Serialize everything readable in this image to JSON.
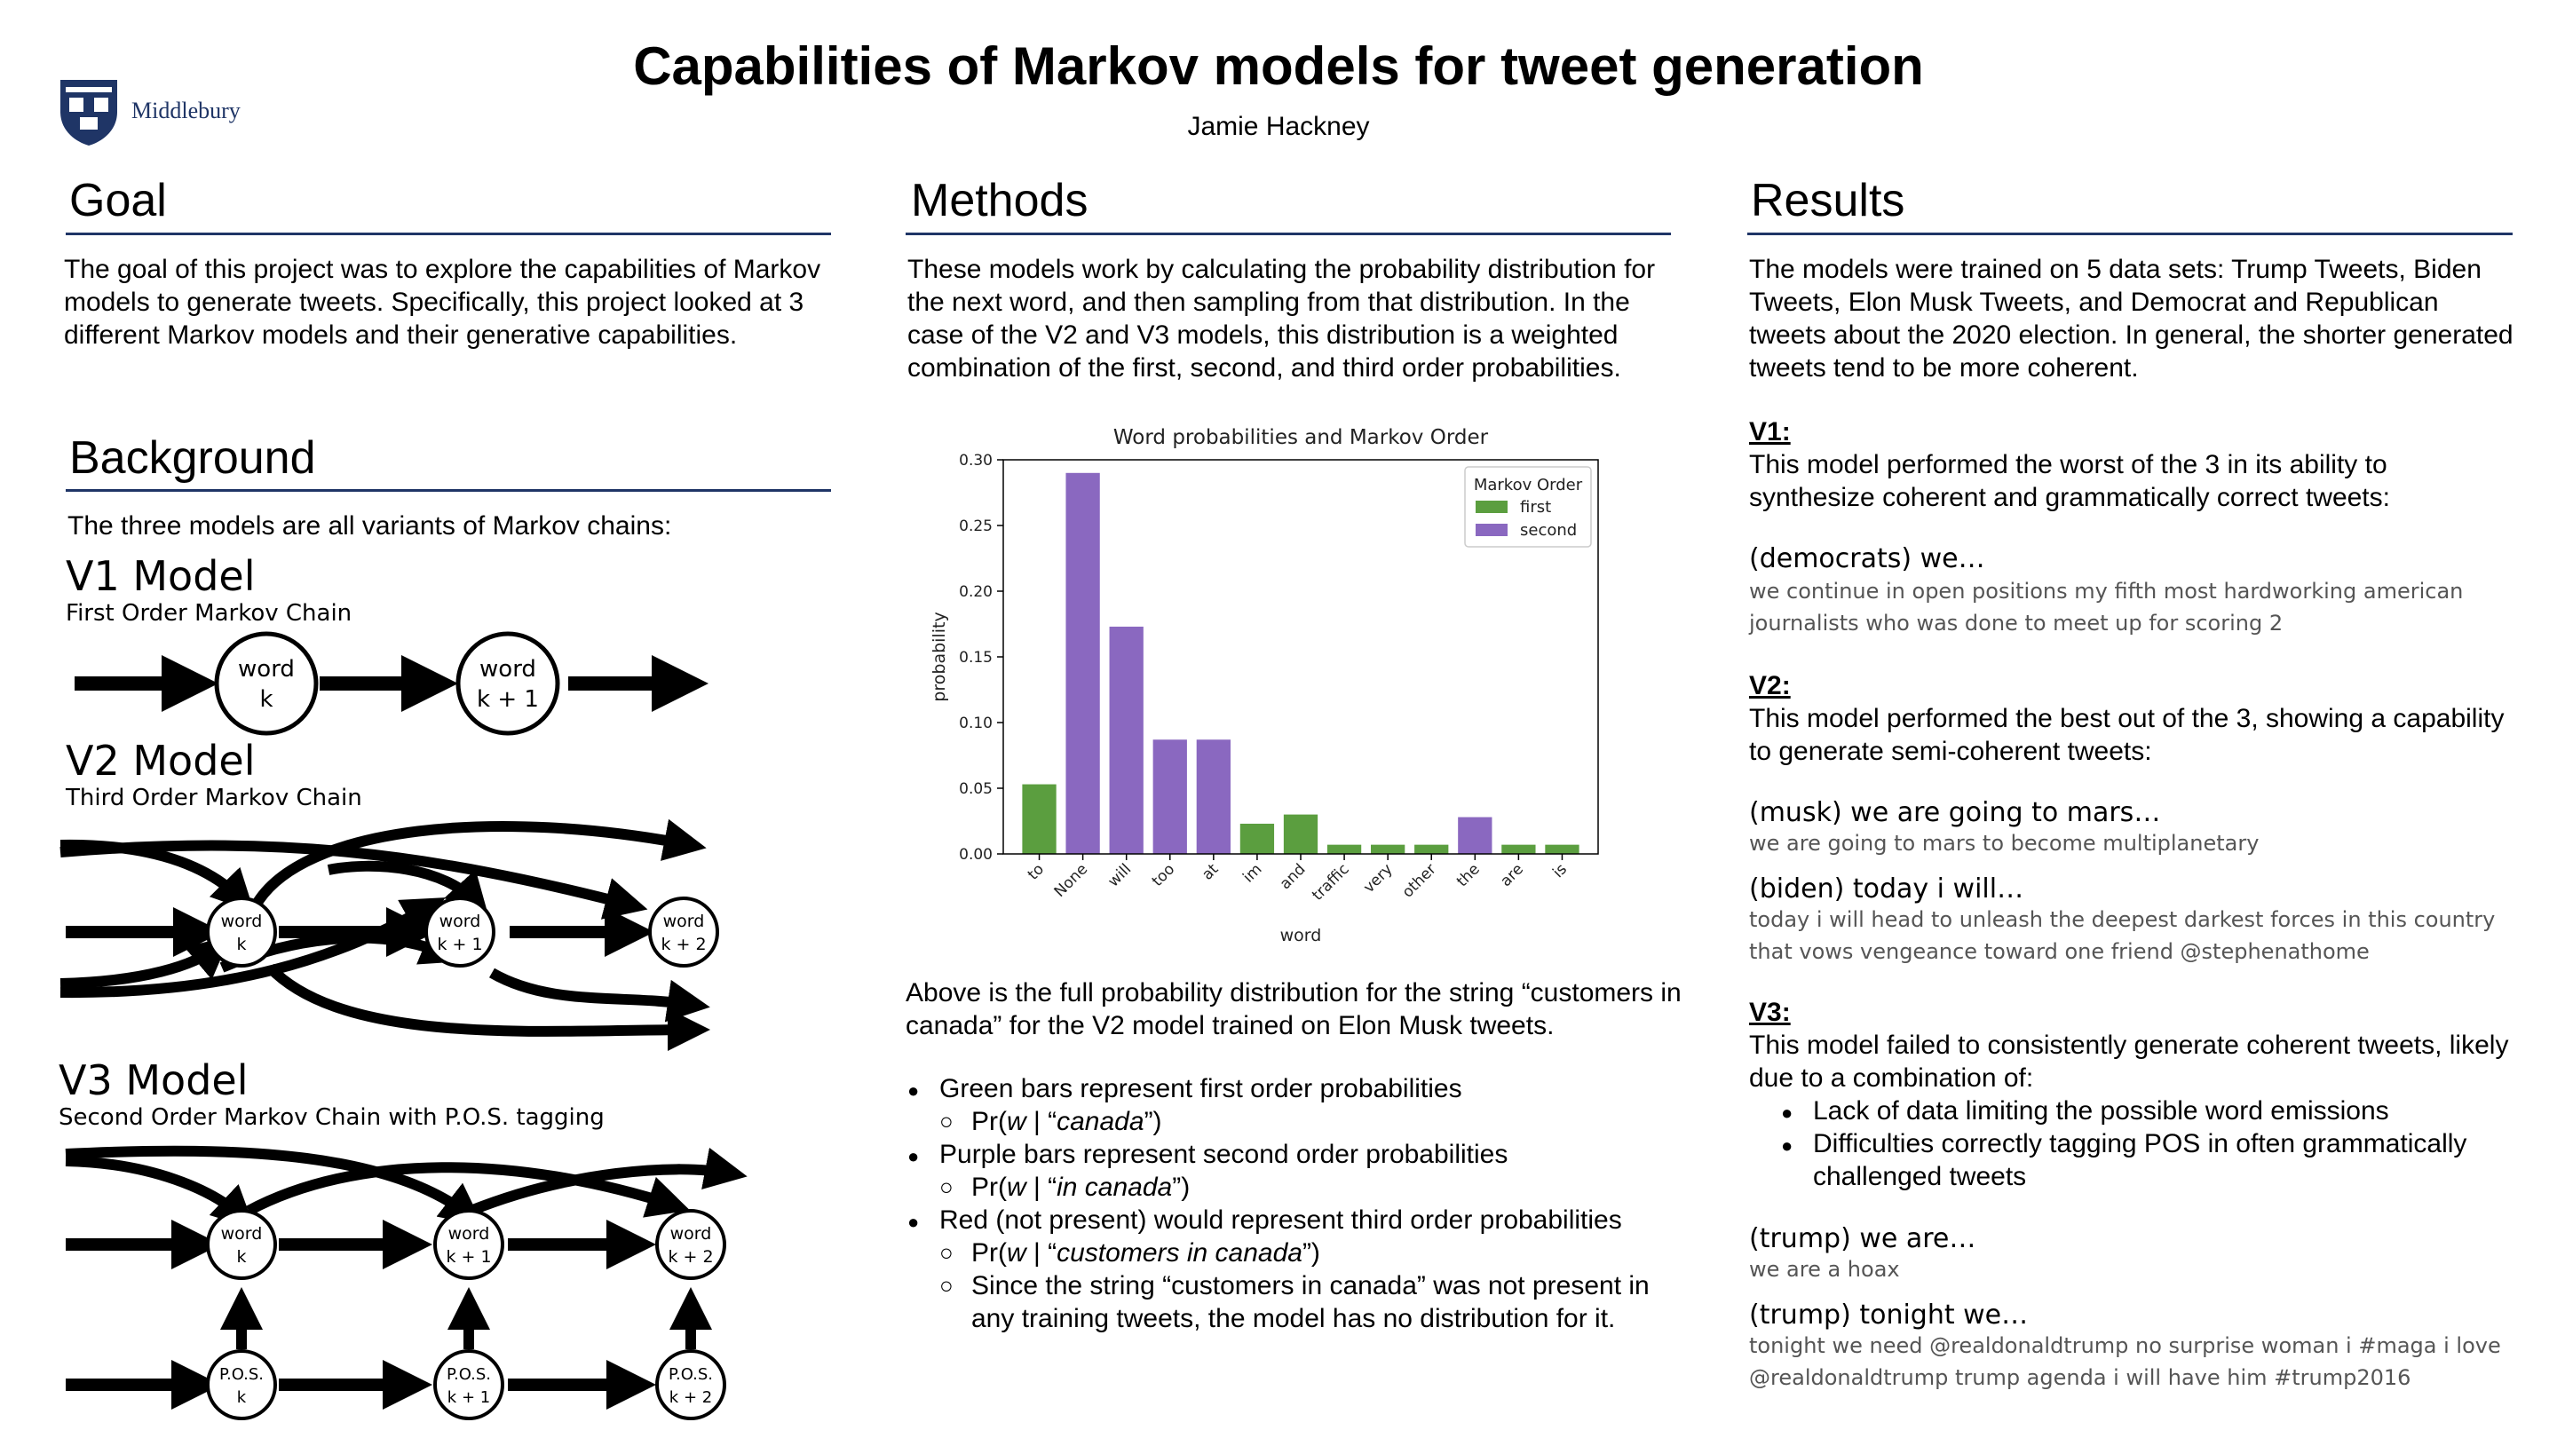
{
  "header": {
    "title": "Capabilities of Markov models for tweet generation",
    "author": "Jamie Hackney",
    "logo_text": "Middlebury"
  },
  "goal": {
    "heading": "Goal",
    "text": "The goal of this project was to explore the capabilities of Markov models to generate tweets. Specifically, this project looked at 3 different Markov models and their generative capabilities."
  },
  "background": {
    "heading": "Background",
    "intro": "The three models are all variants of Markov chains:",
    "v1": {
      "title": "V1 Model",
      "subtitle": "First Order Markov Chain",
      "node1": [
        "word",
        "k"
      ],
      "node2": [
        "word",
        "k + 1"
      ]
    },
    "v2": {
      "title": "V2 Model",
      "subtitle": "Third Order Markov Chain",
      "nodes": [
        [
          "word",
          "k"
        ],
        [
          "word",
          "k + 1"
        ],
        [
          "word",
          "k + 2"
        ]
      ]
    },
    "v3": {
      "title": "V3 Model",
      "subtitle": "Second Order Markov Chain with P.O.S. tagging",
      "word_nodes": [
        [
          "word",
          "k"
        ],
        [
          "word",
          "k + 1"
        ],
        [
          "word",
          "k + 2"
        ]
      ],
      "pos_nodes": [
        [
          "P.O.S.",
          "k"
        ],
        [
          "P.O.S.",
          "k + 1"
        ],
        [
          "P.O.S.",
          "k + 2"
        ]
      ]
    }
  },
  "methods": {
    "heading": "Methods",
    "text": "These models work by calculating the probability distribution for the next word, and then sampling from that distribution. In the case of the V2 and V3 models, this distribution is a weighted combination of the first, second, and third order probabilities.",
    "caption": "Above is the full probability distribution for the string “customers in canada” for the V2 model trained on Elon Musk tweets.",
    "bullets": {
      "b1": "Green bars represent first order probabilities",
      "b1_sub": {
        "prefix": "Pr(",
        "var": "w",
        "mid": " | “",
        "phrase": "canada",
        "suffix": "”)"
      },
      "b2": "Purple bars represent second order probabilities",
      "b2_sub": {
        "prefix": "Pr(",
        "var": "w",
        "mid": " | “",
        "phrase": "in canada",
        "suffix": "”)"
      },
      "b3": "Red (not present) would represent third order probabilities",
      "b3_sub": {
        "prefix": "Pr(",
        "var": "w",
        "mid": " | “",
        "phrase": "customers in canada",
        "suffix": "”)"
      },
      "b3_sub2": "Since the string “customers in canada” was not present in any training tweets, the model has no distribution for it."
    }
  },
  "chart_data": {
    "type": "bar",
    "title": "Word probabilities and Markov Order",
    "xlabel": "word",
    "ylabel": "probability",
    "ylim": [
      0,
      0.3
    ],
    "yticks": [
      "0.00",
      "0.05",
      "0.10",
      "0.15",
      "0.20",
      "0.25",
      "0.30"
    ],
    "grid": false,
    "legend": {
      "title": "Markov Order",
      "placement": "top-right",
      "entries": [
        "first",
        "second"
      ]
    },
    "colors": {
      "first": "#5b9e3f",
      "second": "#8a68c0"
    },
    "categories": [
      "to",
      "None",
      "will",
      "too",
      "at",
      "im",
      "and",
      "traffic",
      "very",
      "other",
      "the",
      "are",
      "is"
    ],
    "values": [
      0.053,
      0.29,
      0.173,
      0.087,
      0.087,
      0.023,
      0.03,
      0.007,
      0.007,
      0.007,
      0.028,
      0.007,
      0.007
    ],
    "order": [
      "first",
      "second",
      "second",
      "second",
      "second",
      "first",
      "first",
      "first",
      "first",
      "first",
      "second",
      "first",
      "first"
    ]
  },
  "results": {
    "heading": "Results",
    "text": "The models were trained on 5 data sets: Trump Tweets, Biden Tweets, Elon Musk Tweets, and Democrat and Republican tweets about the 2020 election. In general, the shorter generated tweets tend to be more coherent.",
    "v1": {
      "head": "V1:",
      "desc": "This model performed the worst of the 3 in its ability to synthesize coherent and grammatically correct tweets:",
      "examples": [
        {
          "label": "(democrats) we…",
          "text": "we continue in open positions my fifth most hardworking american journalists who was done to meet up for scoring 2"
        }
      ]
    },
    "v2": {
      "head": "V2:",
      "desc": "This model performed the best out of the 3, showing a capability to generate semi-coherent tweets:",
      "examples": [
        {
          "label": "(musk) we are going to mars…",
          "text": "we are going to mars to become multiplanetary"
        },
        {
          "label": "(biden) today i will…",
          "text": "today i will head to unleash the deepest darkest forces in this country that vows vengeance toward one friend @stephenathome"
        }
      ]
    },
    "v3": {
      "head": "V3:",
      "desc": "This model failed to consistently generate coherent tweets, likely due to a combination of:",
      "bullets": [
        "Lack of data limiting the possible word emissions",
        "Difficulties correctly tagging POS in often grammatically challenged tweets"
      ],
      "examples": [
        {
          "label": "(trump) we are…",
          "text": "we are a hoax"
        },
        {
          "label": "(trump) tonight we…",
          "text": "tonight we need @realdonaldtrump no surprise woman i #maga i love @realdonaldtrump trump agenda i will have him #trump2016"
        }
      ]
    }
  }
}
